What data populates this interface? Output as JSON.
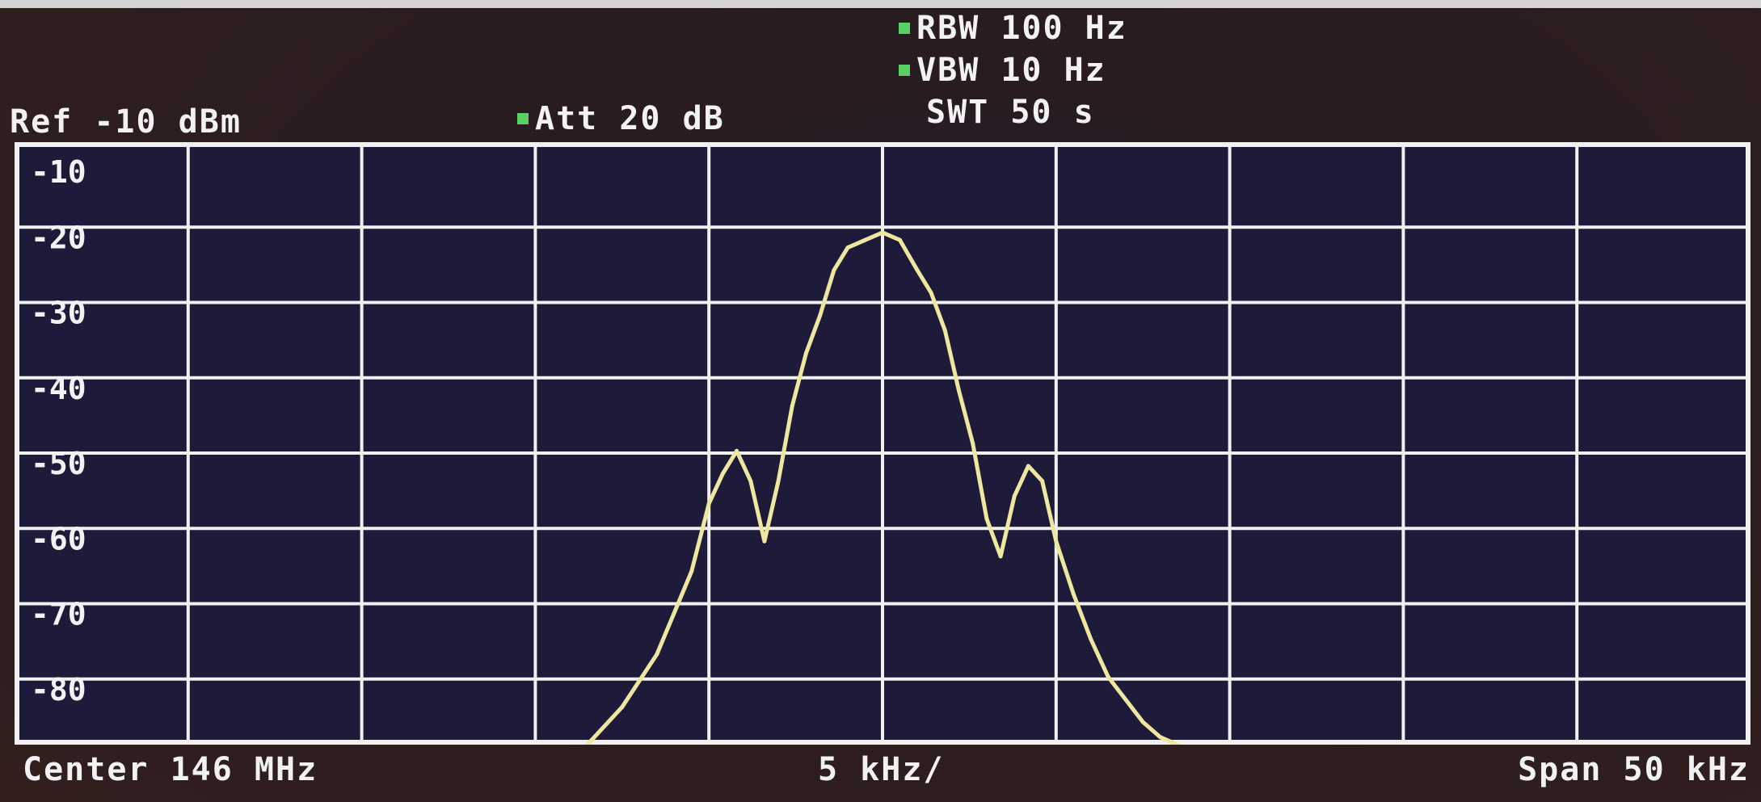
{
  "header": {
    "ref_label": "Ref -10 dBm",
    "att_label": "Att  20 dB",
    "rbw_label": "RBW 100 Hz",
    "vbw_label": "VBW 10 Hz",
    "swt_label": "SWT 50 s"
  },
  "footer": {
    "center_label": "Center 146 MHz",
    "div_label": "5 kHz/",
    "span_label": "Span 50 kHz"
  },
  "colors": {
    "screen_bg": "#1d1a3a",
    "grid": "#f0f0f0",
    "trace": "#efe6a0",
    "marker": "#57d163"
  },
  "chart_data": {
    "type": "line",
    "y_tick_labels": [
      "-10",
      "-20",
      "-30",
      "-40",
      "-50",
      "-60",
      "-70",
      "-80"
    ],
    "x_divisions": 10,
    "y_divisions": 8,
    "xlim": [
      -25,
      25
    ],
    "ylim": [
      -85,
      -5
    ],
    "xlabel": "",
    "ylabel": "",
    "series": [
      {
        "x": [
          -8.5,
          -7.5,
          -6.5,
          -5.5,
          -5.0,
          -4.6,
          -4.2,
          -3.8,
          -3.4,
          -3.0,
          -2.6,
          -2.2,
          -1.8,
          -1.4,
          -1.0,
          -0.5,
          0.0,
          0.5,
          1.0,
          1.4,
          1.8,
          2.2,
          2.6,
          3.0,
          3.4,
          3.8,
          4.2,
          4.6,
          5.0,
          5.5,
          6.0,
          6.5,
          7.0,
          7.5,
          8.0,
          8.5
        ],
        "y": [
          -85,
          -80,
          -73,
          -62,
          -53,
          -49,
          -46,
          -50,
          -58,
          -50,
          -40,
          -33,
          -28,
          -22,
          -19,
          -18,
          -17,
          -18,
          -22,
          -25,
          -30,
          -38,
          -45,
          -55,
          -60,
          -52,
          -48,
          -50,
          -58,
          -65,
          -71,
          -76,
          -79,
          -82,
          -84,
          -85
        ]
      }
    ]
  }
}
